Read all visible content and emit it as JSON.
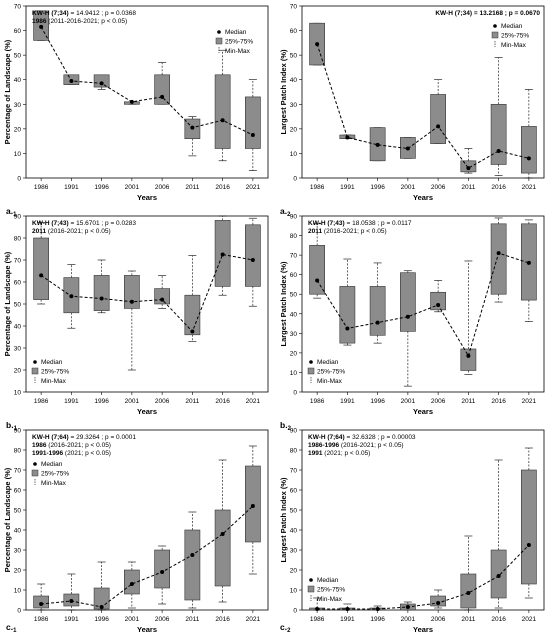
{
  "chart_data": [
    {
      "id": "a1",
      "panel_label": "a1",
      "type": "box",
      "xlabel": "Years",
      "ylabel": "Percentage of Landscape (%)",
      "ylim": [
        0,
        70
      ],
      "yticks": [
        0,
        10,
        20,
        30,
        40,
        50,
        60,
        70
      ],
      "categories": [
        "1986",
        "1991",
        "1996",
        "2001",
        "2006",
        "2011",
        "2016",
        "2021"
      ],
      "stat_lines": [
        {
          "bold": "KW-H (7;34)",
          "normal": " = 14.9412 ; p = 0.0368"
        },
        {
          "bold": "1986",
          "normal": " (2011-2016-2021; p < 0.05)"
        }
      ],
      "legend": {
        "position": "top-right",
        "median": "Median",
        "iqr": "25%-75%",
        "range": "Min-Max"
      },
      "series": [
        {
          "boxes": [
            {
              "min": 56,
              "q1": 56,
              "median": 61.5,
              "q3": 68,
              "max": 68
            },
            {
              "min": 38,
              "q1": 38,
              "median": 39.5,
              "q3": 42,
              "max": 42
            },
            {
              "min": 36,
              "q1": 37,
              "median": 38.5,
              "q3": 42,
              "max": 42
            },
            {
              "min": 30,
              "q1": 30,
              "median": 31,
              "q3": 31,
              "max": 31
            },
            {
              "min": 30,
              "q1": 30,
              "median": 33,
              "q3": 42,
              "max": 47
            },
            {
              "min": 9,
              "q1": 16,
              "median": 20.5,
              "q3": 24,
              "max": 25
            },
            {
              "min": 7,
              "q1": 12,
              "median": 23.5,
              "q3": 42,
              "max": 52
            },
            {
              "min": 3,
              "q1": 12,
              "median": 17.5,
              "q3": 33,
              "max": 40
            }
          ]
        }
      ]
    },
    {
      "id": "a2",
      "panel_label": "a2",
      "type": "box",
      "xlabel": "Years",
      "ylabel": "Largest Patch Index (%)",
      "ylim": [
        0,
        70
      ],
      "yticks": [
        0,
        10,
        20,
        30,
        40,
        50,
        60,
        70
      ],
      "categories": [
        "1986",
        "1991",
        "1996",
        "2001",
        "2006",
        "2011",
        "2016",
        "2021"
      ],
      "stat_lines": [
        {
          "bold": "KW-H (7;34) = 13.2168 ; p = 0.0670",
          "normal": ""
        }
      ],
      "legend": {
        "position": "top-right",
        "median": "Median",
        "iqr": "25%-75%",
        "range": "Min-Max"
      },
      "series": [
        {
          "boxes": [
            {
              "min": 46,
              "q1": 46,
              "median": 54.5,
              "q3": 63,
              "max": 63
            },
            {
              "min": 16,
              "q1": 16,
              "median": 16.5,
              "q3": 17.5,
              "max": 17.5
            },
            {
              "min": 7,
              "q1": 7,
              "median": 13.5,
              "q3": 20.5,
              "max": 20.5
            },
            {
              "min": 8,
              "q1": 8,
              "median": 12,
              "q3": 16.5,
              "max": 16.5
            },
            {
              "min": 14,
              "q1": 14,
              "median": 21,
              "q3": 34,
              "max": 40
            },
            {
              "min": 2,
              "q1": 2.5,
              "median": 4,
              "q3": 7,
              "max": 12
            },
            {
              "min": 1,
              "q1": 5.5,
              "median": 11,
              "q3": 30,
              "max": 49
            },
            {
              "min": 0,
              "q1": 2,
              "median": 8,
              "q3": 21,
              "max": 36
            }
          ]
        }
      ]
    },
    {
      "id": "b1",
      "panel_label": "b1",
      "type": "box",
      "xlabel": "Years",
      "ylabel": "Percentage of Landscape (%)",
      "ylim": [
        10,
        90
      ],
      "yticks": [
        10,
        20,
        30,
        40,
        50,
        60,
        70,
        80,
        90
      ],
      "categories": [
        "1986",
        "1991",
        "1996",
        "2001",
        "2006",
        "2011",
        "2016",
        "2021"
      ],
      "stat_lines": [
        {
          "bold": "KW-H (7;43)",
          "normal": " = 15.6701 ; p = 0.0283"
        },
        {
          "bold": "2011",
          "normal": " (2016-2021; p < 0.05)"
        }
      ],
      "legend": {
        "position": "bottom-left",
        "median": "Median",
        "iqr": "25%-75%",
        "range": "Min-Max"
      },
      "series": [
        {
          "boxes": [
            {
              "min": 50,
              "q1": 52,
              "median": 63,
              "q3": 80,
              "max": 87
            },
            {
              "min": 39,
              "q1": 46,
              "median": 53.5,
              "q3": 62,
              "max": 68
            },
            {
              "min": 46,
              "q1": 47,
              "median": 52.5,
              "q3": 63,
              "max": 70
            },
            {
              "min": 20,
              "q1": 48,
              "median": 51,
              "q3": 63,
              "max": 65
            },
            {
              "min": 48,
              "q1": 50,
              "median": 52,
              "q3": 57,
              "max": 63
            },
            {
              "min": 33,
              "q1": 36,
              "median": 37.5,
              "q3": 54,
              "max": 72
            },
            {
              "min": 54,
              "q1": 58,
              "median": 72.5,
              "q3": 88,
              "max": 90
            },
            {
              "min": 49,
              "q1": 58,
              "median": 70,
              "q3": 86,
              "max": 89
            }
          ]
        }
      ]
    },
    {
      "id": "b2",
      "panel_label": "b2",
      "type": "box",
      "xlabel": "Years",
      "ylabel": "Largest Patch Index (%)",
      "ylim": [
        0,
        90
      ],
      "yticks": [
        0,
        10,
        20,
        30,
        40,
        50,
        60,
        70,
        80,
        90
      ],
      "categories": [
        "1986",
        "1991",
        "1996",
        "2001",
        "2006",
        "2011",
        "2016",
        "2021"
      ],
      "stat_lines": [
        {
          "bold": "KW-H (7;43)",
          "normal": " = 18.0538 ; p = 0.0117"
        },
        {
          "bold": "2011",
          "normal": " (2016-2021; p < 0.05)"
        }
      ],
      "legend": {
        "position": "bottom-left",
        "median": "Median",
        "iqr": "25%-75%",
        "range": "Min-Max"
      },
      "series": [
        {
          "boxes": [
            {
              "min": 48,
              "q1": 50,
              "median": 57,
              "q3": 75,
              "max": 86
            },
            {
              "min": 24,
              "q1": 25,
              "median": 32.5,
              "q3": 54,
              "max": 68
            },
            {
              "min": 25,
              "q1": 29,
              "median": 35.5,
              "q3": 54,
              "max": 66
            },
            {
              "min": 3,
              "q1": 31,
              "median": 38.5,
              "q3": 61,
              "max": 62
            },
            {
              "min": 41,
              "q1": 42,
              "median": 44.5,
              "q3": 51,
              "max": 57
            },
            {
              "min": 9,
              "q1": 11,
              "median": 18.5,
              "q3": 22,
              "max": 67
            },
            {
              "min": 46,
              "q1": 50,
              "median": 71,
              "q3": 86,
              "max": 89
            },
            {
              "min": 36,
              "q1": 47,
              "median": 66,
              "q3": 86,
              "max": 88
            }
          ]
        }
      ]
    },
    {
      "id": "c1",
      "panel_label": "c1",
      "type": "box",
      "xlabel": "Years",
      "ylabel": "Percentage of Landscape (%)",
      "ylim": [
        0,
        90
      ],
      "yticks": [
        0,
        10,
        20,
        30,
        40,
        50,
        60,
        70,
        80,
        90
      ],
      "categories": [
        "1986",
        "1991",
        "1996",
        "2001",
        "2006",
        "2011",
        "2016",
        "2021"
      ],
      "stat_lines": [
        {
          "bold": "KW-H (7;64)",
          "normal": " = 29.3264 ; p = 0.0001"
        },
        {
          "bold": "1986",
          "normal": " (2016-2021; p < 0.05)"
        },
        {
          "bold": "1991-1996",
          "normal": " (2021; p < 0.05)"
        }
      ],
      "legend": {
        "position": "top-left",
        "median": "Median",
        "iqr": "25%-75%",
        "range": "Min-Max"
      },
      "series": [
        {
          "boxes": [
            {
              "min": 0,
              "q1": 1,
              "median": 3,
              "q3": 7,
              "max": 13
            },
            {
              "min": 0,
              "q1": 2,
              "median": 4.5,
              "q3": 8,
              "max": 18
            },
            {
              "min": 0,
              "q1": 0.5,
              "median": 1.5,
              "q3": 11,
              "max": 24
            },
            {
              "min": 1,
              "q1": 8,
              "median": 13,
              "q3": 20,
              "max": 24
            },
            {
              "min": 3,
              "q1": 11,
              "median": 19,
              "q3": 30,
              "max": 32
            },
            {
              "min": 1,
              "q1": 5,
              "median": 27.5,
              "q3": 40,
              "max": 49
            },
            {
              "min": 4,
              "q1": 12,
              "median": 38,
              "q3": 50,
              "max": 75
            },
            {
              "min": 18,
              "q1": 34,
              "median": 52,
              "q3": 72,
              "max": 82
            }
          ]
        }
      ]
    },
    {
      "id": "c2",
      "panel_label": "c2",
      "type": "box",
      "xlabel": "Years",
      "ylabel": "Largest Patch Index (%)",
      "ylim": [
        0,
        90
      ],
      "yticks": [
        0,
        10,
        20,
        30,
        40,
        50,
        60,
        70,
        80,
        90
      ],
      "categories": [
        "1986",
        "1991",
        "1996",
        "2001",
        "2006",
        "2011",
        "2016",
        "2021"
      ],
      "stat_lines": [
        {
          "bold": "KW-H (7;64)",
          "normal": " = 32.6328 ; p = 0.00003"
        },
        {
          "bold": "1986-1996",
          "normal": " (2016-2021; p < 0.05)"
        },
        {
          "bold": "1991",
          "normal": " (2021; p < 0.05)"
        }
      ],
      "legend": {
        "position": "bottom-left",
        "median": "Median",
        "iqr": "25%-75%",
        "range": "Min-Max"
      },
      "series": [
        {
          "boxes": [
            {
              "min": 0,
              "q1": 0,
              "median": 0.5,
              "q3": 1,
              "max": 6
            },
            {
              "min": 0,
              "q1": 0,
              "median": 0.5,
              "q3": 1,
              "max": 3
            },
            {
              "min": 0,
              "q1": 0,
              "median": 0.5,
              "q3": 1,
              "max": 2
            },
            {
              "min": 0,
              "q1": 0,
              "median": 1.5,
              "q3": 3,
              "max": 4
            },
            {
              "min": 1,
              "q1": 2,
              "median": 3.5,
              "q3": 7,
              "max": 10
            },
            {
              "min": 0,
              "q1": 1,
              "median": 8.5,
              "q3": 18,
              "max": 37
            },
            {
              "min": 1,
              "q1": 6,
              "median": 17,
              "q3": 30,
              "max": 75
            },
            {
              "min": 6,
              "q1": 13,
              "median": 32.5,
              "q3": 70,
              "max": 81
            }
          ]
        }
      ]
    }
  ]
}
